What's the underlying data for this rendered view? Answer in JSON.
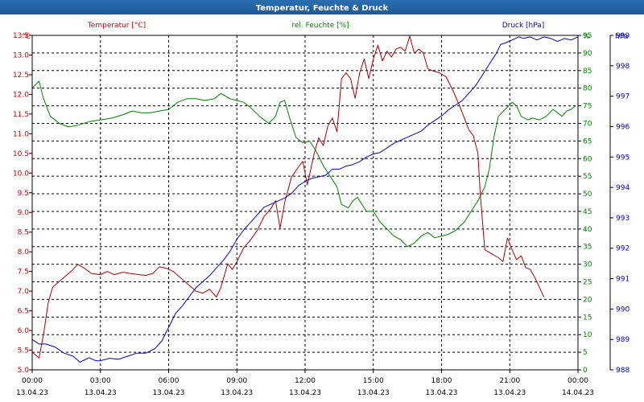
{
  "chart_data": {
    "type": "line",
    "title": "Temperatur, Feuchte & Druck",
    "x_labels": [
      {
        "time": "00:00",
        "date": "13.04.23"
      },
      {
        "time": "03:00",
        "date": "13.04.23"
      },
      {
        "time": "06:00",
        "date": "13.04.23"
      },
      {
        "time": "09:00",
        "date": "13.04.23"
      },
      {
        "time": "12:00",
        "date": "13.04.23"
      },
      {
        "time": "15:00",
        "date": "13.04.23"
      },
      {
        "time": "18:00",
        "date": "13.04.23"
      },
      {
        "time": "21:00",
        "date": "13.04.23"
      },
      {
        "time": "00:00",
        "date": "14.04.23"
      }
    ],
    "x_range_hours": [
      0,
      24
    ],
    "grid": true,
    "axes": {
      "temperature": {
        "header": "Temperatur [°C]",
        "unit": "°C",
        "min": 5.0,
        "max": 13.5,
        "step": 0.5,
        "color": "#cc0000",
        "side": "left"
      },
      "humidity": {
        "header": "rel. Feuchte [%]",
        "unit": "%",
        "min": 0,
        "max": 95,
        "step": 5,
        "color": "#008000",
        "side": "right"
      },
      "pressure": {
        "header": "Druck [hPa]",
        "unit": "hPa",
        "min": 988,
        "max": 999,
        "step": 1,
        "color": "#0000cc",
        "side": "right"
      }
    },
    "series": [
      {
        "name": "Temperatur [°C]",
        "axis": "temperature",
        "color": "#aa0000",
        "points": [
          [
            0.0,
            5.45
          ],
          [
            0.3,
            5.3
          ],
          [
            0.5,
            5.9
          ],
          [
            0.7,
            6.7
          ],
          [
            0.9,
            7.1
          ],
          [
            1.2,
            7.25
          ],
          [
            1.5,
            7.4
          ],
          [
            1.8,
            7.55
          ],
          [
            2.0,
            7.68
          ],
          [
            2.3,
            7.58
          ],
          [
            2.6,
            7.45
          ],
          [
            3.0,
            7.42
          ],
          [
            3.3,
            7.5
          ],
          [
            3.6,
            7.42
          ],
          [
            4.0,
            7.48
          ],
          [
            4.3,
            7.45
          ],
          [
            4.7,
            7.42
          ],
          [
            5.0,
            7.4
          ],
          [
            5.3,
            7.45
          ],
          [
            5.6,
            7.62
          ],
          [
            5.9,
            7.58
          ],
          [
            6.2,
            7.5
          ],
          [
            6.6,
            7.3
          ],
          [
            6.9,
            7.15
          ],
          [
            7.2,
            7.0
          ],
          [
            7.5,
            6.95
          ],
          [
            7.8,
            7.05
          ],
          [
            8.1,
            6.85
          ],
          [
            8.3,
            7.1
          ],
          [
            8.6,
            7.7
          ],
          [
            8.8,
            7.55
          ],
          [
            9.0,
            7.75
          ],
          [
            9.3,
            8.1
          ],
          [
            9.6,
            8.3
          ],
          [
            9.9,
            8.55
          ],
          [
            10.2,
            8.9
          ],
          [
            10.5,
            9.1
          ],
          [
            10.7,
            9.3
          ],
          [
            10.9,
            8.6
          ],
          [
            11.1,
            9.25
          ],
          [
            11.4,
            9.9
          ],
          [
            11.7,
            10.15
          ],
          [
            11.9,
            10.3
          ],
          [
            12.1,
            9.7
          ],
          [
            12.4,
            10.5
          ],
          [
            12.6,
            10.9
          ],
          [
            12.8,
            10.7
          ],
          [
            13.0,
            11.2
          ],
          [
            13.2,
            11.4
          ],
          [
            13.4,
            11.05
          ],
          [
            13.6,
            12.4
          ],
          [
            13.8,
            12.55
          ],
          [
            14.0,
            12.4
          ],
          [
            14.2,
            11.9
          ],
          [
            14.4,
            12.55
          ],
          [
            14.6,
            12.9
          ],
          [
            14.8,
            12.4
          ],
          [
            15.0,
            12.9
          ],
          [
            15.2,
            13.25
          ],
          [
            15.4,
            12.85
          ],
          [
            15.6,
            13.1
          ],
          [
            15.8,
            12.95
          ],
          [
            16.0,
            13.15
          ],
          [
            16.2,
            13.2
          ],
          [
            16.4,
            13.1
          ],
          [
            16.6,
            13.48
          ],
          [
            16.8,
            13.05
          ],
          [
            17.0,
            13.15
          ],
          [
            17.2,
            13.05
          ],
          [
            17.4,
            12.65
          ],
          [
            17.6,
            12.6
          ],
          [
            17.9,
            12.55
          ],
          [
            18.2,
            12.45
          ],
          [
            18.5,
            12.1
          ],
          [
            18.8,
            11.7
          ],
          [
            19.0,
            11.4
          ],
          [
            19.2,
            11.1
          ],
          [
            19.4,
            10.95
          ],
          [
            19.6,
            10.5
          ],
          [
            19.7,
            9.5
          ],
          [
            19.9,
            8.05
          ],
          [
            20.2,
            7.95
          ],
          [
            20.5,
            7.85
          ],
          [
            20.7,
            7.75
          ],
          [
            20.9,
            8.35
          ],
          [
            21.1,
            8.05
          ],
          [
            21.3,
            7.8
          ],
          [
            21.5,
            7.9
          ],
          [
            21.7,
            7.6
          ],
          [
            21.9,
            7.55
          ],
          [
            22.1,
            7.35
          ],
          [
            22.3,
            7.1
          ],
          [
            22.5,
            6.85
          ]
        ]
      },
      {
        "name": "rel. Feuchte [%]",
        "axis": "humidity",
        "color": "#008000",
        "points": [
          [
            0.0,
            80
          ],
          [
            0.3,
            82
          ],
          [
            0.5,
            77
          ],
          [
            0.8,
            72
          ],
          [
            1.2,
            70
          ],
          [
            1.6,
            69
          ],
          [
            2.0,
            69.5
          ],
          [
            2.5,
            70.5
          ],
          [
            3.0,
            71
          ],
          [
            3.5,
            71.5
          ],
          [
            4.0,
            72.5
          ],
          [
            4.4,
            73.5
          ],
          [
            4.8,
            73
          ],
          [
            5.2,
            73
          ],
          [
            5.6,
            73.5
          ],
          [
            6.0,
            74
          ],
          [
            6.4,
            76
          ],
          [
            6.8,
            77
          ],
          [
            7.2,
            77
          ],
          [
            7.6,
            76.5
          ],
          [
            8.0,
            77
          ],
          [
            8.3,
            78.5
          ],
          [
            8.7,
            77
          ],
          [
            9.0,
            76.5
          ],
          [
            9.3,
            76
          ],
          [
            9.6,
            74.5
          ],
          [
            10.0,
            72
          ],
          [
            10.4,
            70
          ],
          [
            10.7,
            72
          ],
          [
            10.9,
            76
          ],
          [
            11.1,
            76.5
          ],
          [
            11.3,
            72
          ],
          [
            11.6,
            66
          ],
          [
            11.9,
            64.5
          ],
          [
            12.2,
            65
          ],
          [
            12.5,
            62
          ],
          [
            12.8,
            58
          ],
          [
            13.1,
            55
          ],
          [
            13.4,
            52
          ],
          [
            13.6,
            47
          ],
          [
            13.9,
            46
          ],
          [
            14.1,
            48
          ],
          [
            14.3,
            49
          ],
          [
            14.5,
            47
          ],
          [
            14.7,
            45
          ],
          [
            15.0,
            45
          ],
          [
            15.3,
            42
          ],
          [
            15.6,
            40
          ],
          [
            15.9,
            38
          ],
          [
            16.2,
            37
          ],
          [
            16.5,
            35
          ],
          [
            16.8,
            36
          ],
          [
            17.1,
            38
          ],
          [
            17.4,
            39
          ],
          [
            17.7,
            37.5
          ],
          [
            18.0,
            38
          ],
          [
            18.3,
            38.5
          ],
          [
            18.6,
            39.5
          ],
          [
            19.0,
            42
          ],
          [
            19.3,
            45
          ],
          [
            19.6,
            48
          ],
          [
            19.9,
            52
          ],
          [
            20.1,
            57
          ],
          [
            20.3,
            66
          ],
          [
            20.5,
            72
          ],
          [
            20.8,
            74
          ],
          [
            21.1,
            76
          ],
          [
            21.3,
            75
          ],
          [
            21.5,
            72
          ],
          [
            21.8,
            71
          ],
          [
            22.0,
            71.5
          ],
          [
            22.3,
            71
          ],
          [
            22.6,
            72
          ],
          [
            22.9,
            74
          ],
          [
            23.1,
            73
          ],
          [
            23.3,
            72
          ],
          [
            23.5,
            73.5
          ],
          [
            23.7,
            74
          ],
          [
            23.9,
            75
          ]
        ]
      },
      {
        "name": "Druck [hPa]",
        "axis": "pressure",
        "color": "#0000cc",
        "points": [
          [
            0.0,
            989.0
          ],
          [
            0.3,
            988.85
          ],
          [
            0.6,
            988.85
          ],
          [
            1.0,
            988.75
          ],
          [
            1.4,
            988.55
          ],
          [
            1.8,
            988.45
          ],
          [
            2.1,
            988.25
          ],
          [
            2.5,
            988.4
          ],
          [
            2.8,
            988.3
          ],
          [
            3.0,
            988.3
          ],
          [
            3.4,
            988.38
          ],
          [
            3.8,
            988.35
          ],
          [
            4.2,
            988.45
          ],
          [
            4.6,
            988.55
          ],
          [
            5.0,
            988.55
          ],
          [
            5.4,
            988.7
          ],
          [
            5.7,
            988.95
          ],
          [
            6.0,
            989.4
          ],
          [
            6.3,
            989.85
          ],
          [
            6.6,
            990.1
          ],
          [
            6.9,
            990.4
          ],
          [
            7.2,
            990.7
          ],
          [
            7.5,
            990.9
          ],
          [
            7.8,
            991.1
          ],
          [
            8.1,
            991.35
          ],
          [
            8.4,
            991.6
          ],
          [
            8.7,
            991.9
          ],
          [
            9.0,
            992.3
          ],
          [
            9.3,
            992.6
          ],
          [
            9.6,
            992.85
          ],
          [
            9.9,
            993.1
          ],
          [
            10.2,
            993.35
          ],
          [
            10.5,
            993.45
          ],
          [
            10.8,
            993.55
          ],
          [
            11.1,
            993.65
          ],
          [
            11.4,
            993.8
          ],
          [
            11.7,
            994.05
          ],
          [
            12.0,
            994.2
          ],
          [
            12.3,
            994.3
          ],
          [
            12.6,
            994.35
          ],
          [
            12.9,
            994.4
          ],
          [
            13.2,
            994.6
          ],
          [
            13.5,
            994.6
          ],
          [
            13.8,
            994.7
          ],
          [
            14.1,
            994.75
          ],
          [
            14.4,
            994.85
          ],
          [
            14.7,
            995.0
          ],
          [
            15.0,
            995.1
          ],
          [
            15.3,
            995.15
          ],
          [
            15.6,
            995.3
          ],
          [
            15.9,
            995.45
          ],
          [
            16.2,
            995.55
          ],
          [
            16.5,
            995.65
          ],
          [
            16.8,
            995.75
          ],
          [
            17.1,
            995.85
          ],
          [
            17.4,
            996.05
          ],
          [
            17.7,
            996.2
          ],
          [
            18.0,
            996.35
          ],
          [
            18.3,
            996.55
          ],
          [
            18.6,
            996.7
          ],
          [
            18.9,
            996.85
          ],
          [
            19.2,
            997.1
          ],
          [
            19.5,
            997.35
          ],
          [
            19.8,
            997.7
          ],
          [
            20.1,
            998.05
          ],
          [
            20.4,
            998.4
          ],
          [
            20.6,
            998.7
          ],
          [
            20.8,
            998.75
          ],
          [
            21.1,
            998.85
          ],
          [
            21.4,
            998.95
          ],
          [
            21.6,
            998.9
          ],
          [
            21.9,
            998.95
          ],
          [
            22.2,
            998.85
          ],
          [
            22.5,
            998.95
          ],
          [
            22.8,
            998.9
          ],
          [
            23.1,
            998.8
          ],
          [
            23.4,
            998.9
          ],
          [
            23.7,
            998.85
          ],
          [
            24.0,
            998.95
          ]
        ]
      }
    ]
  }
}
